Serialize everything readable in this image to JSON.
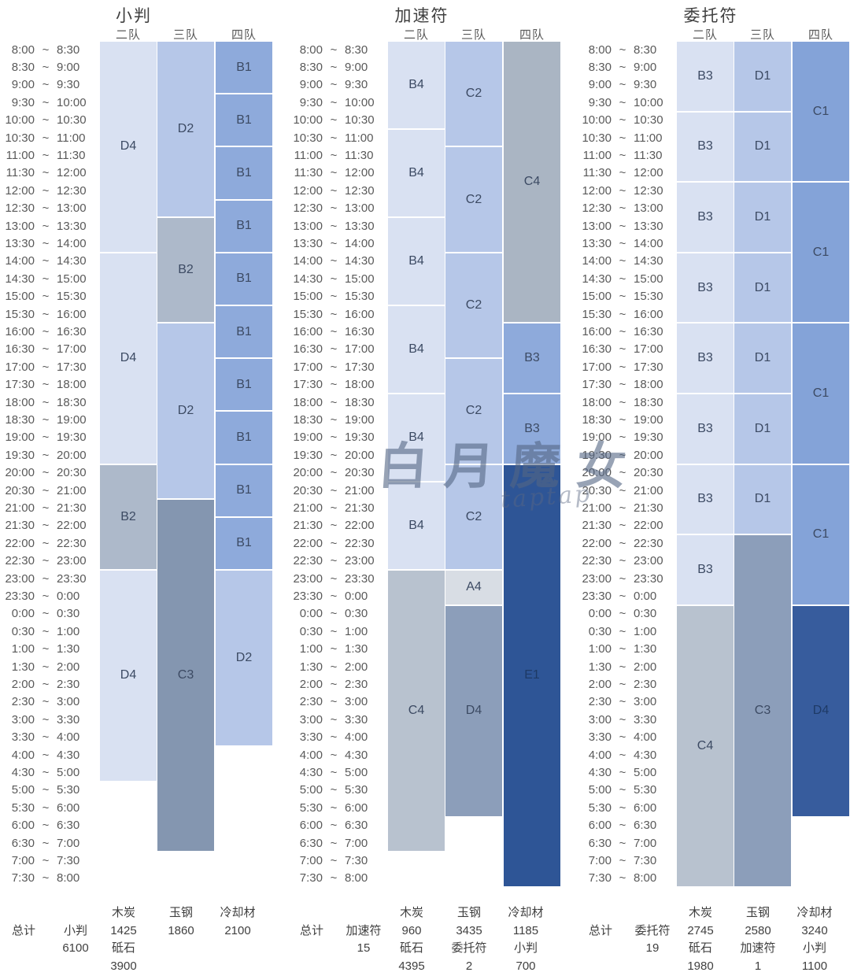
{
  "watermark": {
    "main": "白月魔女",
    "sub": "taptap"
  },
  "palette": {
    "t80": "#D9E1F2",
    "t60": "#B6C7E8",
    "t40": "#8EAADB",
    "t40b": "#84A3D8",
    "g80": "#D8DDE4",
    "g60": "#ADB9CA",
    "g60b": "#AAB5C3",
    "g50": "#B8C2CF",
    "g40": "#8496B0",
    "g40b": "#8C9EBA",
    "navy": "#2E5596",
    "navy2": "#375C9D",
    "block_label": "#3C4A63",
    "block_label_dark": "#1E3A66",
    "axis_text": "#595959",
    "heading_text": "#3F3F3F"
  },
  "team_headers": [
    "二队",
    "三队",
    "四队"
  ],
  "time_slots": [
    [
      "8:00",
      "8:30"
    ],
    [
      "8:30",
      "9:00"
    ],
    [
      "9:00",
      "9:30"
    ],
    [
      "9:30",
      "10:00"
    ],
    [
      "10:00",
      "10:30"
    ],
    [
      "10:30",
      "11:00"
    ],
    [
      "11:00",
      "11:30"
    ],
    [
      "11:30",
      "12:00"
    ],
    [
      "12:00",
      "12:30"
    ],
    [
      "12:30",
      "13:00"
    ],
    [
      "13:00",
      "13:30"
    ],
    [
      "13:30",
      "14:00"
    ],
    [
      "14:00",
      "14:30"
    ],
    [
      "14:30",
      "15:00"
    ],
    [
      "15:00",
      "15:30"
    ],
    [
      "15:30",
      "16:00"
    ],
    [
      "16:00",
      "16:30"
    ],
    [
      "16:30",
      "17:00"
    ],
    [
      "17:00",
      "17:30"
    ],
    [
      "17:30",
      "18:00"
    ],
    [
      "18:00",
      "18:30"
    ],
    [
      "18:30",
      "19:00"
    ],
    [
      "19:00",
      "19:30"
    ],
    [
      "19:30",
      "20:00"
    ],
    [
      "20:00",
      "20:30"
    ],
    [
      "20:30",
      "21:00"
    ],
    [
      "21:00",
      "21:30"
    ],
    [
      "21:30",
      "22:00"
    ],
    [
      "22:00",
      "22:30"
    ],
    [
      "22:30",
      "23:00"
    ],
    [
      "23:00",
      "23:30"
    ],
    [
      "23:30",
      "0:00"
    ],
    [
      "0:00",
      "0:30"
    ],
    [
      "0:30",
      "1:00"
    ],
    [
      "1:00",
      "1:30"
    ],
    [
      "1:30",
      "2:00"
    ],
    [
      "2:00",
      "2:30"
    ],
    [
      "2:30",
      "3:00"
    ],
    [
      "3:00",
      "3:30"
    ],
    [
      "3:30",
      "4:00"
    ],
    [
      "4:00",
      "4:30"
    ],
    [
      "4:30",
      "5:00"
    ],
    [
      "5:00",
      "5:30"
    ],
    [
      "5:30",
      "6:00"
    ],
    [
      "6:00",
      "6:30"
    ],
    [
      "6:30",
      "7:00"
    ],
    [
      "7:00",
      "7:30"
    ],
    [
      "7:30",
      "8:00"
    ]
  ],
  "chart_data": [
    {
      "type": "bar",
      "variant": "gantt-schedule",
      "title": "小判",
      "time_axis": {
        "start": "8:00",
        "slot_minutes": 30,
        "slots": 48
      },
      "series": [
        {
          "team": "二队",
          "blocks": [
            [
              "D4",
              "8:00",
              "14:00",
              "t80"
            ],
            [
              "D4",
              "14:00",
              "20:00",
              "t80"
            ],
            [
              "B2",
              "20:00",
              "23:00",
              "g60"
            ],
            [
              "D4",
              "23:00",
              "5:00",
              "t80"
            ]
          ]
        },
        {
          "team": "三队",
          "blocks": [
            [
              "D2",
              "8:00",
              "13:00",
              "t60"
            ],
            [
              "B2",
              "13:00",
              "16:00",
              "g60"
            ],
            [
              "D2",
              "16:00",
              "21:00",
              "t60"
            ],
            [
              "C3",
              "21:00",
              "7:00",
              "g40"
            ]
          ]
        },
        {
          "team": "四队",
          "blocks": [
            [
              "B1",
              "8:00",
              "9:30",
              "t40"
            ],
            [
              "B1",
              "9:30",
              "11:00",
              "t40"
            ],
            [
              "B1",
              "11:00",
              "12:30",
              "t40"
            ],
            [
              "B1",
              "12:30",
              "14:00",
              "t40"
            ],
            [
              "B1",
              "14:00",
              "15:30",
              "t40"
            ],
            [
              "B1",
              "15:30",
              "17:00",
              "t40"
            ],
            [
              "B1",
              "17:00",
              "18:30",
              "t40"
            ],
            [
              "B1",
              "18:30",
              "20:00",
              "t40"
            ],
            [
              "B1",
              "20:00",
              "21:30",
              "t40"
            ],
            [
              "B1",
              "21:30",
              "23:00",
              "t40"
            ],
            [
              "D2",
              "23:00",
              "4:00",
              "t60"
            ]
          ]
        }
      ],
      "totals_grid": [
        [
          "",
          "总计",
          "",
          ""
        ],
        [
          "",
          "小判",
          "6100",
          ""
        ],
        [
          "木炭",
          "1425",
          "砥石",
          "3900"
        ],
        [
          "玉钢",
          "1860",
          "",
          ""
        ],
        [
          "冷却材",
          "2100",
          "",
          ""
        ]
      ]
    },
    {
      "type": "bar",
      "variant": "gantt-schedule",
      "title": "加速符",
      "time_axis": {
        "start": "8:00",
        "slot_minutes": 30,
        "slots": 48
      },
      "series": [
        {
          "team": "二队",
          "blocks": [
            [
              "B4",
              "8:00",
              "10:30",
              "t80"
            ],
            [
              "B4",
              "10:30",
              "13:00",
              "t80"
            ],
            [
              "B4",
              "13:00",
              "15:30",
              "t80"
            ],
            [
              "B4",
              "15:30",
              "18:00",
              "t80"
            ],
            [
              "B4",
              "18:00",
              "20:30",
              "t80"
            ],
            [
              "B4",
              "20:30",
              "23:00",
              "t80"
            ],
            [
              "C4",
              "23:00",
              "7:00",
              "g50"
            ]
          ]
        },
        {
          "team": "三队",
          "blocks": [
            [
              "C2",
              "8:00",
              "11:00",
              "t60"
            ],
            [
              "C2",
              "11:00",
              "14:00",
              "t60"
            ],
            [
              "C2",
              "14:00",
              "17:00",
              "t60"
            ],
            [
              "C2",
              "17:00",
              "20:00",
              "t60"
            ],
            [
              "C2",
              "20:00",
              "23:00",
              "t60"
            ],
            [
              "A4",
              "23:00",
              "0:00",
              "g80"
            ],
            [
              "D4",
              "0:00",
              "6:00",
              "g40b"
            ]
          ]
        },
        {
          "team": "四队",
          "blocks": [
            [
              "C4",
              "8:00",
              "16:00",
              "g60b"
            ],
            [
              "B3",
              "16:00",
              "18:00",
              "t40"
            ],
            [
              "B3",
              "18:00",
              "20:00",
              "t40"
            ],
            [
              "E1",
              "20:00",
              "8:00",
              "navy"
            ]
          ]
        }
      ],
      "totals_grid": [
        [
          "",
          "总计",
          "",
          ""
        ],
        [
          "",
          "加速符",
          "15",
          ""
        ],
        [
          "木炭",
          "960",
          "砥石",
          "4395"
        ],
        [
          "玉钢",
          "3435",
          "委托符",
          "2"
        ],
        [
          "冷却材",
          "1185",
          "小判",
          "700"
        ]
      ]
    },
    {
      "type": "bar",
      "variant": "gantt-schedule",
      "title": "委托符",
      "time_axis": {
        "start": "8:00",
        "slot_minutes": 30,
        "slots": 48
      },
      "series": [
        {
          "team": "二队",
          "blocks": [
            [
              "B3",
              "8:00",
              "10:00",
              "t80"
            ],
            [
              "B3",
              "10:00",
              "12:00",
              "t80"
            ],
            [
              "B3",
              "12:00",
              "14:00",
              "t80"
            ],
            [
              "B3",
              "14:00",
              "16:00",
              "t80"
            ],
            [
              "B3",
              "16:00",
              "18:00",
              "t80"
            ],
            [
              "B3",
              "18:00",
              "20:00",
              "t80"
            ],
            [
              "B3",
              "20:00",
              "22:00",
              "t80"
            ],
            [
              "B3",
              "22:00",
              "0:00",
              "t80"
            ],
            [
              "C4",
              "0:00",
              "8:00",
              "g50"
            ]
          ]
        },
        {
          "team": "三队",
          "blocks": [
            [
              "D1",
              "8:00",
              "10:00",
              "t60"
            ],
            [
              "D1",
              "10:00",
              "12:00",
              "t60"
            ],
            [
              "D1",
              "12:00",
              "14:00",
              "t60"
            ],
            [
              "D1",
              "14:00",
              "16:00",
              "t60"
            ],
            [
              "D1",
              "16:00",
              "18:00",
              "t60"
            ],
            [
              "D1",
              "18:00",
              "20:00",
              "t60"
            ],
            [
              "D1",
              "20:00",
              "22:00",
              "t60"
            ],
            [
              "C3",
              "22:00",
              "8:00",
              "g40b"
            ]
          ]
        },
        {
          "team": "四队",
          "blocks": [
            [
              "C1",
              "8:00",
              "12:00",
              "t40b"
            ],
            [
              "C1",
              "12:00",
              "16:00",
              "t40b"
            ],
            [
              "C1",
              "16:00",
              "20:00",
              "t40b"
            ],
            [
              "C1",
              "20:00",
              "0:00",
              "t40b"
            ],
            [
              "D4",
              "0:00",
              "6:00",
              "navy2"
            ]
          ]
        }
      ],
      "totals_grid": [
        [
          "",
          "总计",
          "",
          ""
        ],
        [
          "",
          "委托符",
          "19",
          ""
        ],
        [
          "木炭",
          "2745",
          "砥石",
          "1980"
        ],
        [
          "玉钢",
          "2580",
          "加速符",
          "1"
        ],
        [
          "冷却材",
          "3240",
          "小判",
          "1100"
        ]
      ]
    }
  ]
}
